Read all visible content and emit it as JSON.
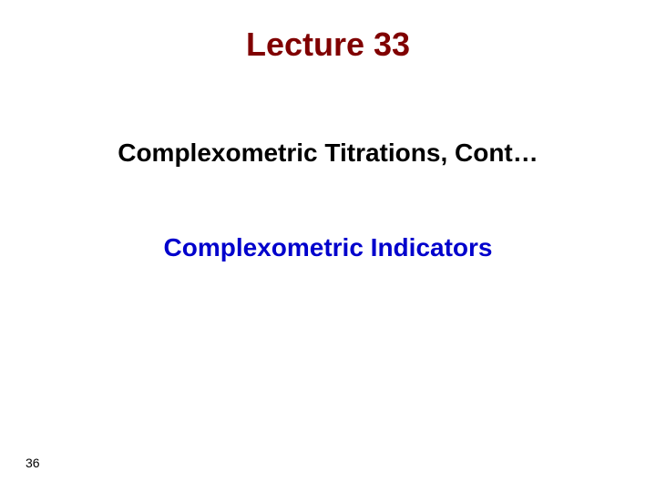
{
  "slide": {
    "title": "Lecture 33",
    "subtitle": "Complexometric Titrations, Cont…",
    "indicator": "Complexometric Indicators",
    "page_number": "36"
  },
  "styles": {
    "background_color": "#ffffff",
    "title_color": "#800000",
    "title_fontsize": 36,
    "subtitle_color": "#000000",
    "subtitle_fontsize": 28,
    "indicator_color": "#0000cc",
    "indicator_fontsize": 28,
    "page_number_color": "#000000",
    "page_number_fontsize": 14,
    "font_family": "Arial, Helvetica, sans-serif"
  }
}
